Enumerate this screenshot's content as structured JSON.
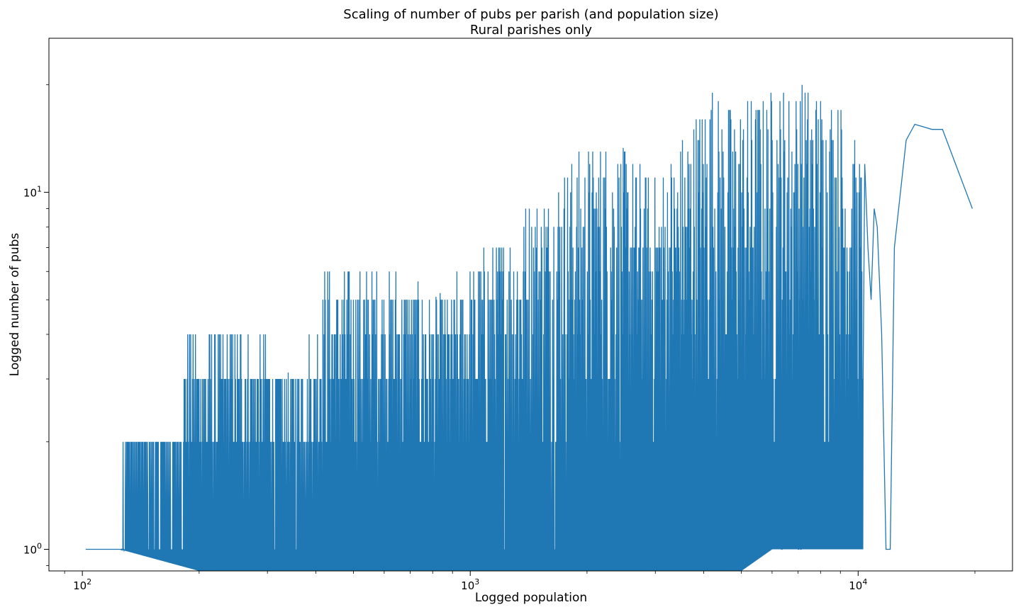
{
  "chart_data": {
    "type": "line",
    "title": "Scaling of number of pubs per parish (and population size)",
    "subtitle": "Rural parishes only",
    "xlabel": "Logged population",
    "ylabel": "Logged number of pubs",
    "xscale": "log",
    "yscale": "log",
    "xlim": [
      82,
      25000
    ],
    "ylim": [
      0.87,
      27
    ],
    "grid": false,
    "x_ticks": [
      {
        "value": 100,
        "base": "10",
        "exp": "2"
      },
      {
        "value": 1000,
        "base": "10",
        "exp": "3"
      },
      {
        "value": 10000,
        "base": "10",
        "exp": "4"
      }
    ],
    "y_ticks": [
      {
        "value": 1,
        "base": "10",
        "exp": "0"
      },
      {
        "value": 10,
        "base": "10",
        "exp": "1"
      }
    ],
    "series": [
      {
        "color": "#1f77b4",
        "note_dense_region": "x in [102, 12000]: values oscillate between lower envelope and upper envelope",
        "lower_envelope": [
          [
            102,
            1
          ],
          [
            125,
            1
          ],
          [
            200,
            0.87
          ],
          [
            5000,
            0.87
          ],
          [
            6000,
            1
          ],
          [
            12000,
            1
          ]
        ],
        "upper_envelope": [
          [
            102,
            1
          ],
          [
            125,
            1
          ],
          [
            127,
            2
          ],
          [
            175,
            2
          ],
          [
            180,
            3
          ],
          [
            185,
            4
          ],
          [
            300,
            4
          ],
          [
            330,
            3
          ],
          [
            400,
            4
          ],
          [
            420,
            6
          ],
          [
            700,
            6
          ],
          [
            800,
            5
          ],
          [
            1300,
            8
          ],
          [
            1350,
            9
          ],
          [
            2200,
            15
          ],
          [
            3000,
            11
          ],
          [
            4200,
            21
          ],
          [
            4500,
            18
          ],
          [
            7500,
            21
          ],
          [
            9200,
            18
          ],
          [
            10000,
            13
          ],
          [
            11000,
            13
          ],
          [
            12000,
            9
          ]
        ],
        "tail": [
          [
            10400,
            12
          ],
          [
            10600,
            7
          ],
          [
            10800,
            5
          ],
          [
            11000,
            9
          ],
          [
            11200,
            8
          ],
          [
            11500,
            4
          ],
          [
            11800,
            1
          ],
          [
            12100,
            1
          ],
          [
            12400,
            7
          ],
          [
            13300,
            14
          ],
          [
            14000,
            15.5
          ],
          [
            15500,
            15
          ],
          [
            16500,
            15
          ],
          [
            19700,
            9
          ]
        ]
      }
    ]
  }
}
